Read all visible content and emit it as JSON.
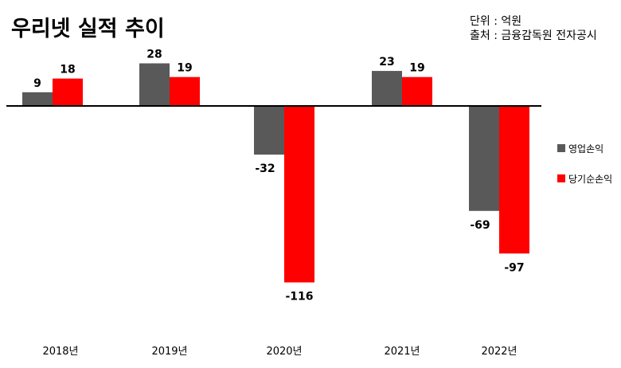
{
  "title": "우리넷 실적 추이",
  "unit_line": "단위 : 억원",
  "source_line": "출처 : 금융감독원 전자공시",
  "colors": {
    "operating": "#595959",
    "net": "#ff0000",
    "axis": "#000000"
  },
  "chart_data": {
    "type": "bar",
    "categories": [
      "2018년",
      "2019년",
      "2020년",
      "2021년",
      "2022년"
    ],
    "series": [
      {
        "name": "영업손익",
        "values": [
          9,
          28,
          -32,
          23,
          -69
        ]
      },
      {
        "name": "당기순손익",
        "values": [
          18,
          19,
          -116,
          19,
          -97
        ]
      }
    ],
    "legend_position": "right",
    "grid": false
  }
}
